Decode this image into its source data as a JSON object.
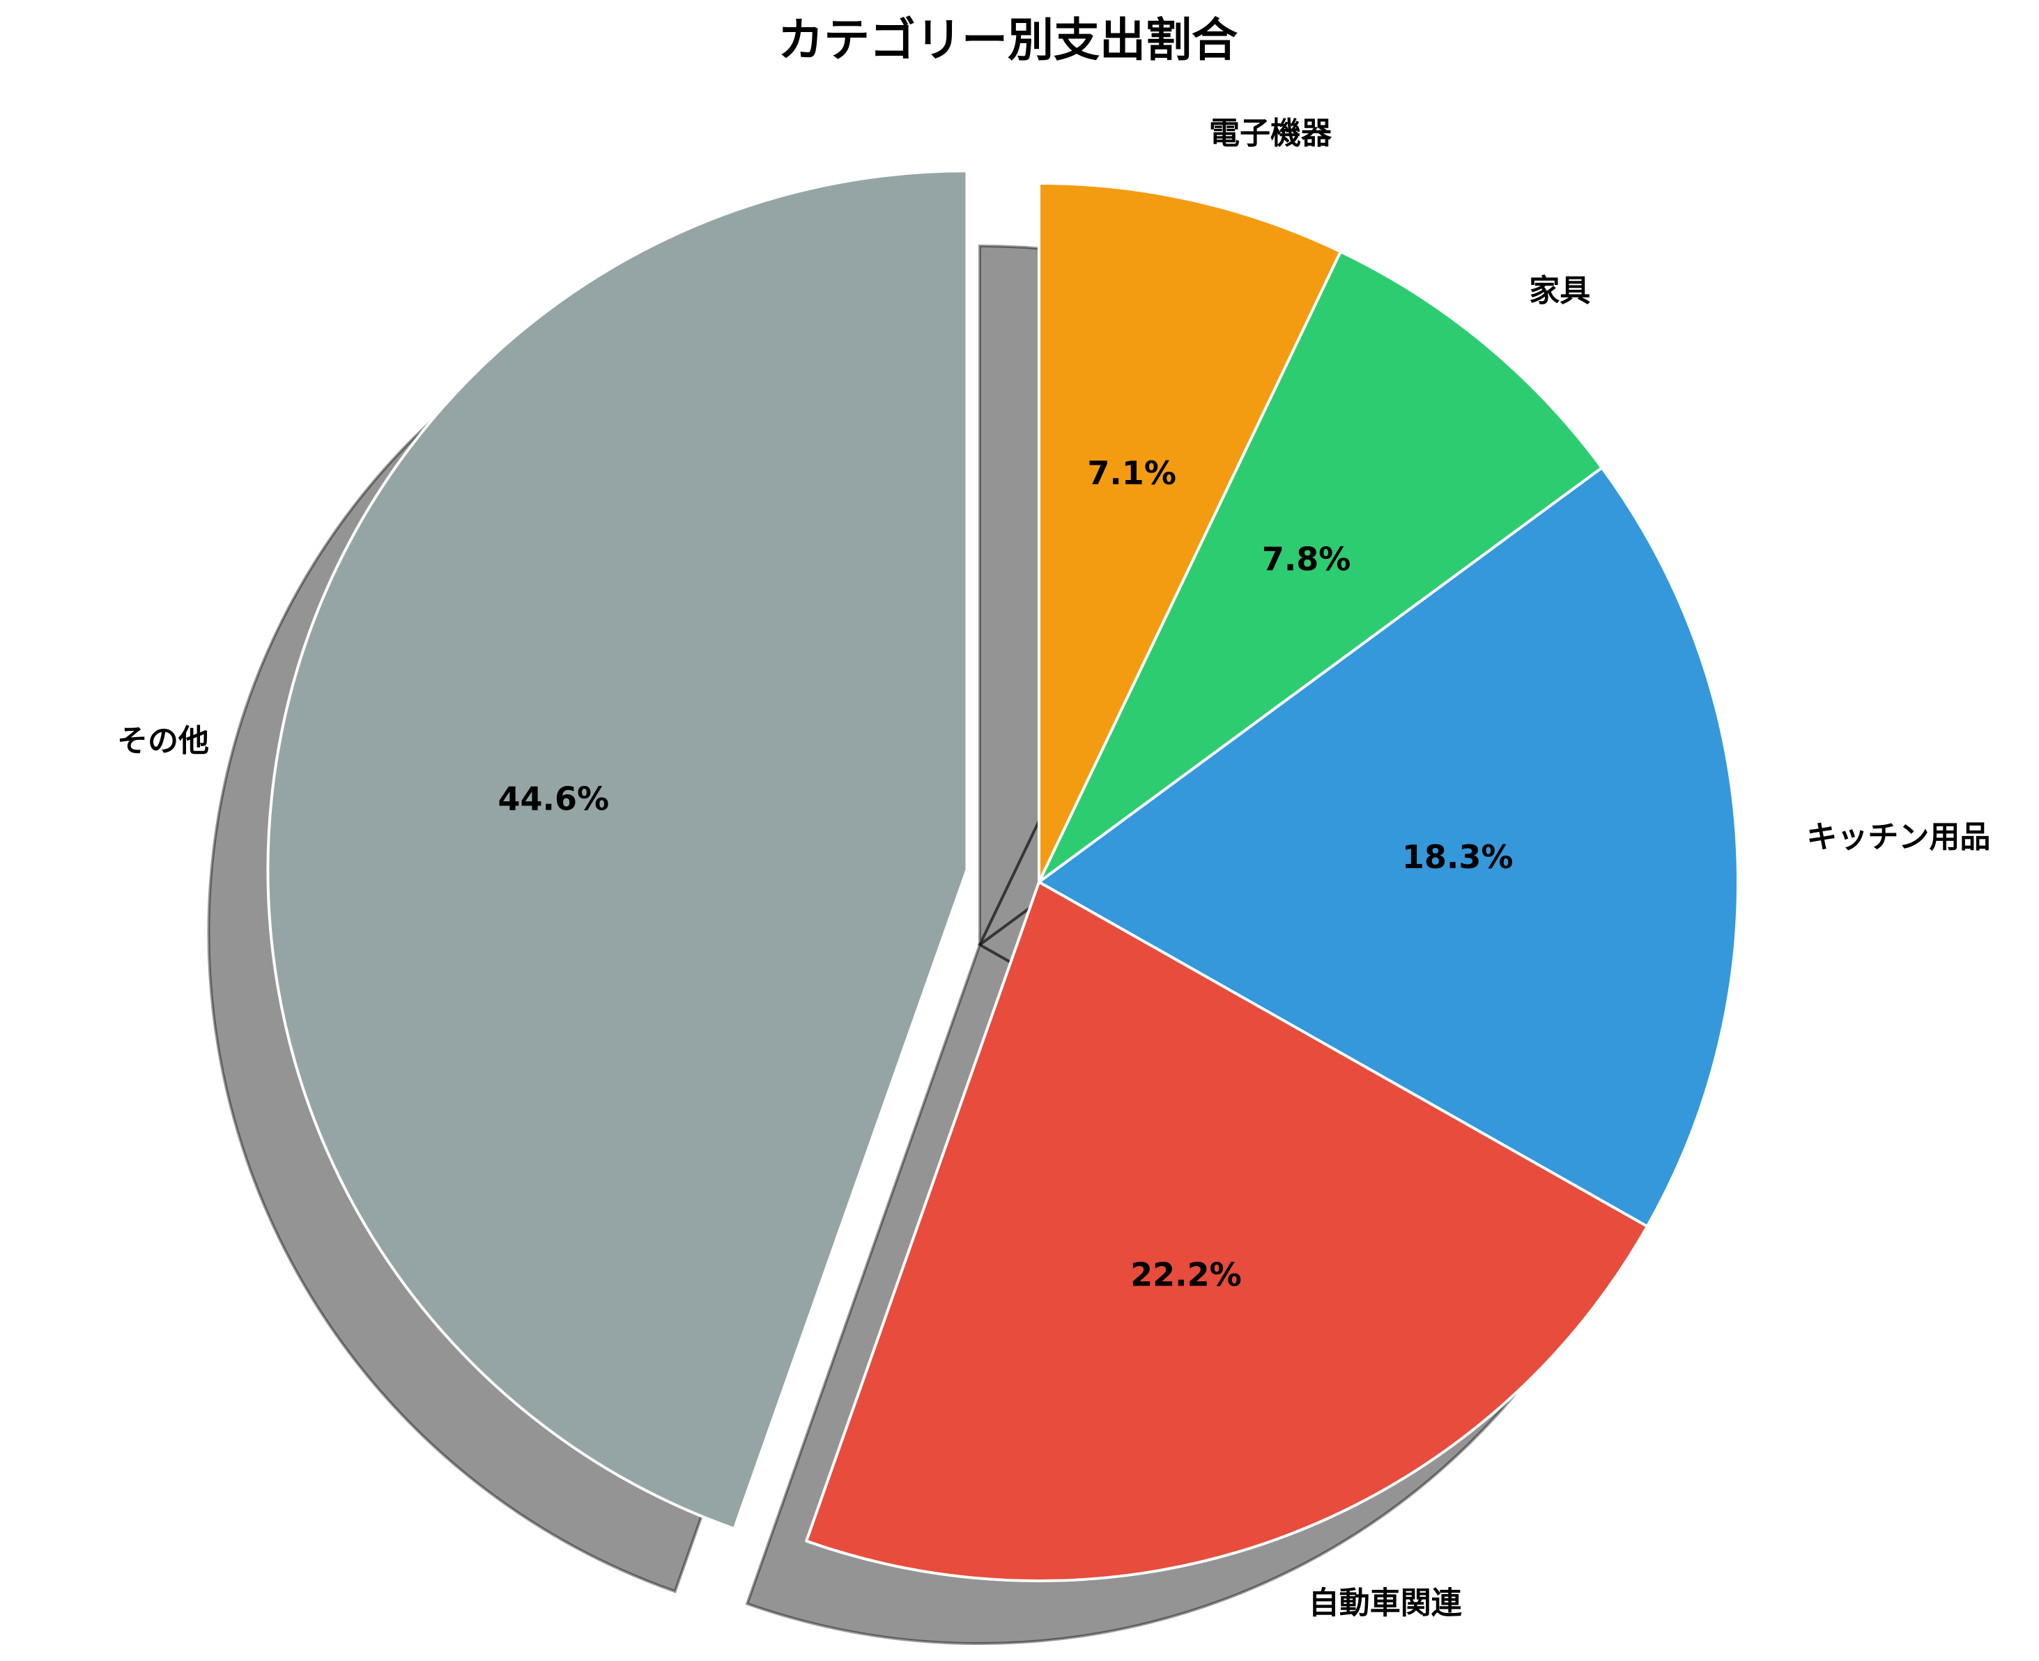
{
  "chart_data": {
    "type": "pie",
    "title": "カテゴリー別支出割合",
    "categories": [
      "電子機器",
      "家具",
      "キッチン用品",
      "自動車関連",
      "その他"
    ],
    "values": [
      7.1,
      7.8,
      18.3,
      22.2,
      44.6
    ],
    "labels": [
      "7.1%",
      "7.8%",
      "18.3%",
      "22.2%",
      "44.6%"
    ],
    "colors": [
      "#f39c12",
      "#2ecc71",
      "#3498db",
      "#e74c3c",
      "#95a5a6"
    ],
    "explode": [
      0,
      0,
      0,
      0,
      1
    ],
    "shadow": true,
    "start_angle": 90,
    "direction": "clockwise"
  }
}
